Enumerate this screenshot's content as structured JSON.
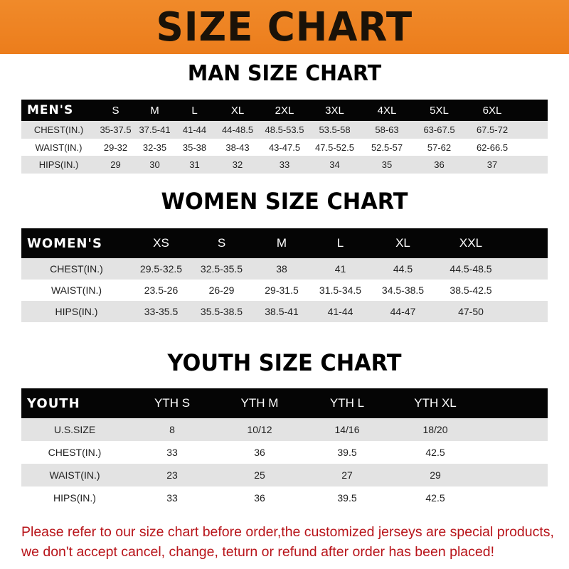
{
  "banner": {
    "title": "SIZE CHART",
    "color": "#ee8322"
  },
  "men": {
    "title": "MAN SIZE CHART",
    "header": [
      "MEN'S",
      "S",
      "M",
      "L",
      "XL",
      "2XL",
      "3XL",
      "4XL",
      "5XL",
      "6XL"
    ],
    "rows": [
      [
        "CHEST(IN.)",
        "35-37.5",
        "37.5-41",
        "41-44",
        "44-48.5",
        "48.5-53.5",
        "53.5-58",
        "58-63",
        "63-67.5",
        "67.5-72"
      ],
      [
        "WAIST(IN.)",
        "29-32",
        "32-35",
        "35-38",
        "38-43",
        "43-47.5",
        "47.5-52.5",
        "52.5-57",
        "57-62",
        "62-66.5"
      ],
      [
        "HIPS(IN.)",
        "29",
        "30",
        "31",
        "32",
        "33",
        "34",
        "35",
        "36",
        "37"
      ]
    ]
  },
  "women": {
    "title": "WOMEN SIZE CHART",
    "header": [
      "WOMEN'S",
      "XS",
      "S",
      "M",
      "L",
      "XL",
      "XXL"
    ],
    "rows": [
      [
        "CHEST(IN.)",
        "29.5-32.5",
        "32.5-35.5",
        "38",
        "41",
        "44.5",
        "44.5-48.5"
      ],
      [
        "WAIST(IN.)",
        "23.5-26",
        "26-29",
        "29-31.5",
        "31.5-34.5",
        "34.5-38.5",
        "38.5-42.5"
      ],
      [
        "HIPS(IN.)",
        "33-35.5",
        "35.5-38.5",
        "38.5-41",
        "41-44",
        "44-47",
        "47-50"
      ]
    ]
  },
  "youth": {
    "title": "YOUTH SIZE CHART",
    "header": [
      "YOUTH",
      "YTH S",
      "YTH M",
      "YTH L",
      "YTH XL"
    ],
    "rows": [
      [
        "U.S.SIZE",
        "8",
        "10/12",
        "14/16",
        "18/20"
      ],
      [
        "CHEST(IN.)",
        "33",
        "36",
        "39.5",
        "42.5"
      ],
      [
        "WAIST(IN.)",
        "23",
        "25",
        "27",
        "29"
      ],
      [
        "HIPS(IN.)",
        "33",
        "36",
        "39.5",
        "42.5"
      ]
    ]
  },
  "note": {
    "line1": "Please refer to our size chart before order,the customized jerseys are special products,",
    "line2": "we don't accept cancel, change, teturn or refund after order has been placed!",
    "color": "#b8141a"
  }
}
